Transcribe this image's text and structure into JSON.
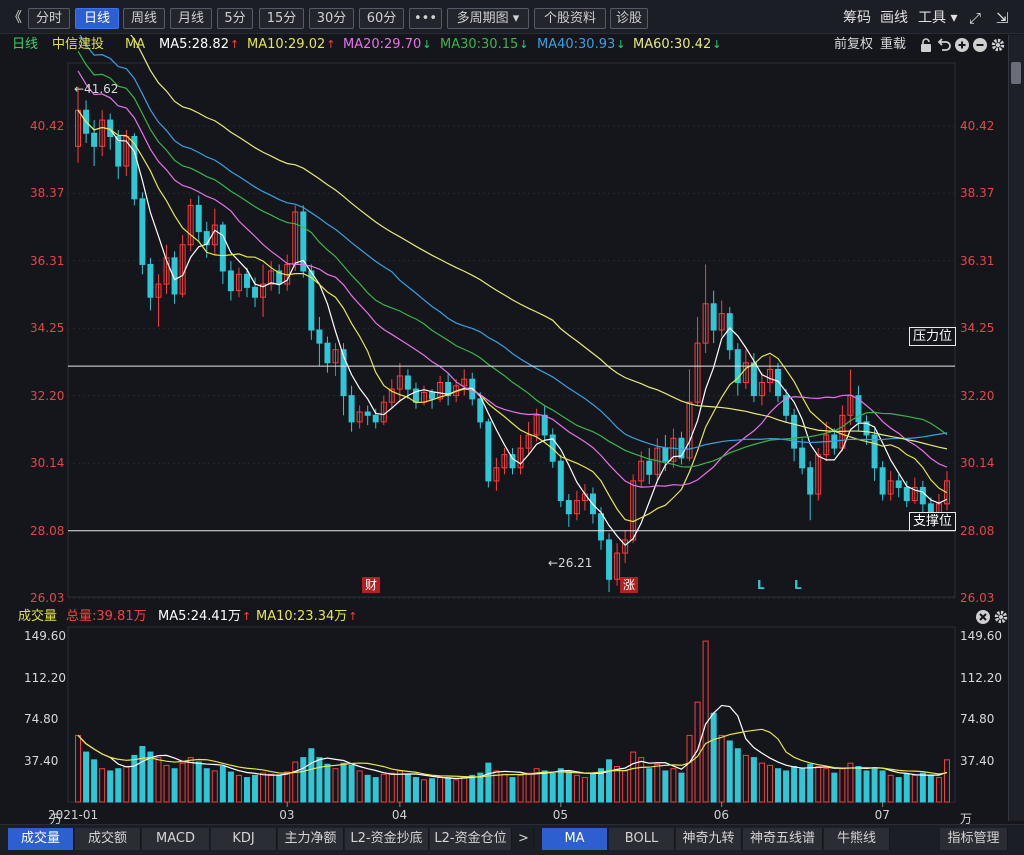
{
  "toolbar": {
    "collapse": "《",
    "buttons": [
      "分时",
      "日线",
      "周线",
      "月线",
      "5分",
      "15分",
      "30分",
      "60分",
      "•••",
      "多周期图 ▾",
      "个股资料",
      "诊股"
    ],
    "active": "日线",
    "right": [
      "筹码",
      "画线",
      "工具 ▾"
    ]
  },
  "legend": {
    "period": "日线",
    "stock": "中信建投",
    "ma_label": "MA",
    "ma5": "MA5:28.82",
    "ma10": "MA10:29.02",
    "ma20": "MA20:29.70",
    "ma30": "MA30:30.15",
    "ma40": "MA40:30.93",
    "ma60": "MA60:30.42",
    "rights": "前复权",
    "overlay": "重载"
  },
  "volume_legend": {
    "title": "成交量",
    "total": "总量:39.81万",
    "ma5": "MA5:24.41万",
    "ma10": "MA10:23.34万"
  },
  "colors": {
    "up": "#ff3b3b",
    "down": "#2fc7d6",
    "ma5": "#ffffff",
    "ma10": "#e6e64a",
    "ma20": "#e872e8",
    "ma30": "#3bb54a",
    "ma40": "#3aa0e0",
    "ma60": "#e8e87a",
    "ma_label": "#e0e04a",
    "stock": "#e0e04a",
    "period": "#3bd16a",
    "active_tab": "#2e5fd1"
  },
  "price_axis": [
    "40.42",
    "38.37",
    "36.31",
    "34.25",
    "32.20",
    "30.14",
    "28.08",
    "26.03"
  ],
  "volume_axis": [
    "149.60",
    "112.20",
    "74.80",
    "37.40",
    "万"
  ],
  "annotations": {
    "high": "←41.62",
    "low": "←26.21",
    "resistance": "压力位",
    "support": "支撑位",
    "marker_cai": "财",
    "marker_zhang": "涨",
    "marker_l1": "L",
    "marker_l2": "L"
  },
  "x_axis": [
    "2021-01",
    "03",
    "04",
    "05",
    "06",
    "07"
  ],
  "bottom_tabs_left": [
    "成交量",
    "成交额",
    "MACD",
    "KDJ",
    "主力净额",
    "L2-资金抄底",
    "L2-资金仓位"
  ],
  "bottom_tabs_right": [
    "MA",
    "BOLL",
    "神奇九转",
    "神奇五线谱",
    "牛熊线",
    "指标管理"
  ],
  "nav_arrow": ">",
  "chart_data": {
    "type": "candlestick",
    "price_range": [
      25.5,
      42.5
    ],
    "volume_range": [
      0,
      149.6
    ],
    "high": 41.62,
    "low": 26.21,
    "resistance": 33.1,
    "support": 28.08,
    "candles": [
      [
        39.8,
        40.9,
        39.3,
        41.62,
        60
      ],
      [
        40.9,
        40.2,
        39.9,
        41.2,
        45
      ],
      [
        40.2,
        39.8,
        39.2,
        40.6,
        38
      ],
      [
        39.8,
        40.6,
        39.5,
        40.9,
        30
      ],
      [
        40.6,
        40.1,
        39.7,
        40.8,
        28
      ],
      [
        40.1,
        39.2,
        38.8,
        40.3,
        30
      ],
      [
        39.2,
        40.1,
        38.9,
        40.3,
        32
      ],
      [
        40.1,
        38.2,
        38.0,
        40.2,
        42
      ],
      [
        38.2,
        36.2,
        35.9,
        38.4,
        50
      ],
      [
        36.2,
        35.2,
        34.8,
        36.4,
        45
      ],
      [
        35.2,
        35.6,
        34.3,
        35.9,
        40
      ],
      [
        35.6,
        36.4,
        35.3,
        36.8,
        33
      ],
      [
        36.4,
        35.3,
        35.0,
        36.6,
        30
      ],
      [
        35.3,
        36.8,
        35.2,
        37.1,
        35
      ],
      [
        36.8,
        38.0,
        36.6,
        38.2,
        40
      ],
      [
        38.0,
        37.2,
        36.9,
        38.3,
        36
      ],
      [
        37.2,
        36.8,
        36.4,
        37.5,
        30
      ],
      [
        36.8,
        37.4,
        36.5,
        37.9,
        28
      ],
      [
        37.4,
        36.0,
        35.6,
        37.5,
        32
      ],
      [
        36.0,
        35.4,
        35.1,
        36.3,
        27
      ],
      [
        35.4,
        35.9,
        35.2,
        36.1,
        24
      ],
      [
        35.9,
        35.5,
        35.2,
        36.1,
        22
      ],
      [
        35.5,
        35.2,
        34.9,
        35.8,
        24
      ],
      [
        35.2,
        35.6,
        34.6,
        36.2,
        26
      ],
      [
        35.6,
        36.0,
        35.4,
        36.3,
        25
      ],
      [
        36.0,
        35.6,
        35.3,
        36.2,
        24
      ],
      [
        35.6,
        36.2,
        35.4,
        36.5,
        27
      ],
      [
        36.2,
        37.8,
        36.0,
        38.0,
        36
      ],
      [
        37.8,
        36.0,
        35.8,
        38.0,
        40
      ],
      [
        36.0,
        34.2,
        33.9,
        36.2,
        48
      ],
      [
        34.2,
        33.8,
        33.1,
        34.6,
        40
      ],
      [
        33.8,
        33.2,
        32.9,
        34.0,
        34
      ],
      [
        33.2,
        33.6,
        32.8,
        33.8,
        30
      ],
      [
        33.6,
        32.2,
        31.6,
        33.8,
        35
      ],
      [
        32.2,
        31.4,
        31.1,
        32.5,
        33
      ],
      [
        31.4,
        31.7,
        31.2,
        31.9,
        28
      ],
      [
        31.7,
        31.6,
        31.3,
        31.9,
        24
      ],
      [
        31.6,
        31.4,
        31.2,
        31.8,
        22
      ],
      [
        31.4,
        32.0,
        31.3,
        32.2,
        25
      ],
      [
        32.0,
        32.4,
        31.8,
        32.7,
        26
      ],
      [
        32.4,
        32.8,
        32.0,
        33.2,
        28
      ],
      [
        32.8,
        32.4,
        32.1,
        33.0,
        25
      ],
      [
        32.4,
        32.0,
        31.8,
        32.6,
        22
      ],
      [
        32.0,
        32.3,
        31.9,
        32.5,
        20
      ],
      [
        32.3,
        32.1,
        31.8,
        32.4,
        21
      ],
      [
        32.1,
        32.6,
        32.0,
        32.8,
        23
      ],
      [
        32.6,
        32.2,
        31.9,
        32.9,
        22
      ],
      [
        32.2,
        32.5,
        32.0,
        32.7,
        20
      ],
      [
        32.5,
        32.7,
        32.2,
        33.0,
        22
      ],
      [
        32.7,
        32.1,
        31.9,
        32.9,
        24
      ],
      [
        32.1,
        31.4,
        31.2,
        32.3,
        26
      ],
      [
        31.4,
        29.6,
        29.4,
        31.5,
        35
      ],
      [
        29.6,
        30.0,
        29.3,
        30.3,
        28
      ],
      [
        30.0,
        30.4,
        29.8,
        30.6,
        25
      ],
      [
        30.4,
        30.0,
        29.8,
        30.6,
        22
      ],
      [
        30.0,
        30.6,
        29.8,
        31.0,
        24
      ],
      [
        30.6,
        31.0,
        30.4,
        31.4,
        26
      ],
      [
        31.0,
        31.6,
        30.8,
        31.8,
        30
      ],
      [
        31.6,
        31.0,
        30.8,
        31.9,
        28
      ],
      [
        31.0,
        30.2,
        30.0,
        31.2,
        26
      ],
      [
        30.2,
        29.0,
        28.8,
        30.4,
        30
      ],
      [
        29.0,
        28.6,
        28.2,
        29.2,
        28
      ],
      [
        28.6,
        29.0,
        28.4,
        29.3,
        24
      ],
      [
        29.0,
        29.2,
        28.7,
        29.5,
        22
      ],
      [
        29.2,
        28.6,
        28.3,
        29.4,
        25
      ],
      [
        28.6,
        27.8,
        27.5,
        28.8,
        30
      ],
      [
        27.8,
        26.6,
        26.21,
        28.0,
        38
      ],
      [
        26.6,
        27.4,
        26.4,
        27.7,
        32
      ],
      [
        27.4,
        27.8,
        27.1,
        28.1,
        28
      ],
      [
        27.8,
        29.6,
        27.7,
        29.8,
        45
      ],
      [
        29.6,
        30.2,
        29.4,
        30.5,
        40
      ],
      [
        30.2,
        29.8,
        29.5,
        30.6,
        30
      ],
      [
        29.8,
        30.6,
        29.6,
        30.9,
        34
      ],
      [
        30.6,
        30.2,
        29.9,
        31.0,
        28
      ],
      [
        30.2,
        30.9,
        30.0,
        31.2,
        30
      ],
      [
        30.9,
        30.3,
        30.1,
        31.1,
        26
      ],
      [
        30.3,
        32.0,
        30.2,
        33.0,
        60
      ],
      [
        32.0,
        33.8,
        31.9,
        34.6,
        90
      ],
      [
        33.8,
        35.0,
        33.5,
        36.2,
        145
      ],
      [
        35.0,
        34.2,
        33.8,
        35.4,
        80
      ],
      [
        34.2,
        34.7,
        34.0,
        35.1,
        60
      ],
      [
        34.7,
        33.6,
        33.3,
        34.9,
        55
      ],
      [
        33.6,
        32.6,
        32.2,
        33.8,
        48
      ],
      [
        32.6,
        33.2,
        32.4,
        33.6,
        42
      ],
      [
        33.2,
        32.2,
        32.0,
        33.5,
        40
      ],
      [
        32.2,
        32.6,
        31.9,
        32.9,
        35
      ],
      [
        32.6,
        33.0,
        32.3,
        33.4,
        33
      ],
      [
        33.0,
        32.2,
        32.0,
        33.2,
        30
      ],
      [
        32.2,
        31.6,
        31.4,
        32.4,
        28
      ],
      [
        31.6,
        30.6,
        30.2,
        31.8,
        32
      ],
      [
        30.6,
        30.0,
        29.8,
        30.9,
        30
      ],
      [
        30.0,
        29.2,
        28.4,
        30.2,
        34
      ],
      [
        29.2,
        30.4,
        29.0,
        30.6,
        32
      ],
      [
        30.4,
        31.0,
        30.2,
        31.4,
        30
      ],
      [
        31.0,
        30.6,
        30.4,
        31.2,
        26
      ],
      [
        30.6,
        31.6,
        30.5,
        31.9,
        30
      ],
      [
        31.6,
        32.2,
        31.3,
        33.0,
        35
      ],
      [
        32.2,
        31.4,
        31.1,
        32.5,
        32
      ],
      [
        31.4,
        31.0,
        30.7,
        31.6,
        28
      ],
      [
        31.0,
        30.0,
        29.6,
        31.2,
        30
      ],
      [
        30.0,
        29.2,
        29.0,
        30.2,
        28
      ],
      [
        29.2,
        29.6,
        29.0,
        29.9,
        24
      ],
      [
        29.6,
        29.4,
        29.1,
        29.8,
        22
      ],
      [
        29.4,
        29.0,
        28.8,
        29.6,
        25
      ],
      [
        29.0,
        29.4,
        28.9,
        29.7,
        24
      ],
      [
        29.4,
        28.9,
        28.6,
        29.6,
        26
      ],
      [
        28.9,
        28.4,
        28.1,
        29.1,
        24
      ],
      [
        28.4,
        28.9,
        28.3,
        29.2,
        22
      ],
      [
        28.9,
        29.6,
        28.7,
        29.9,
        38
      ]
    ]
  }
}
